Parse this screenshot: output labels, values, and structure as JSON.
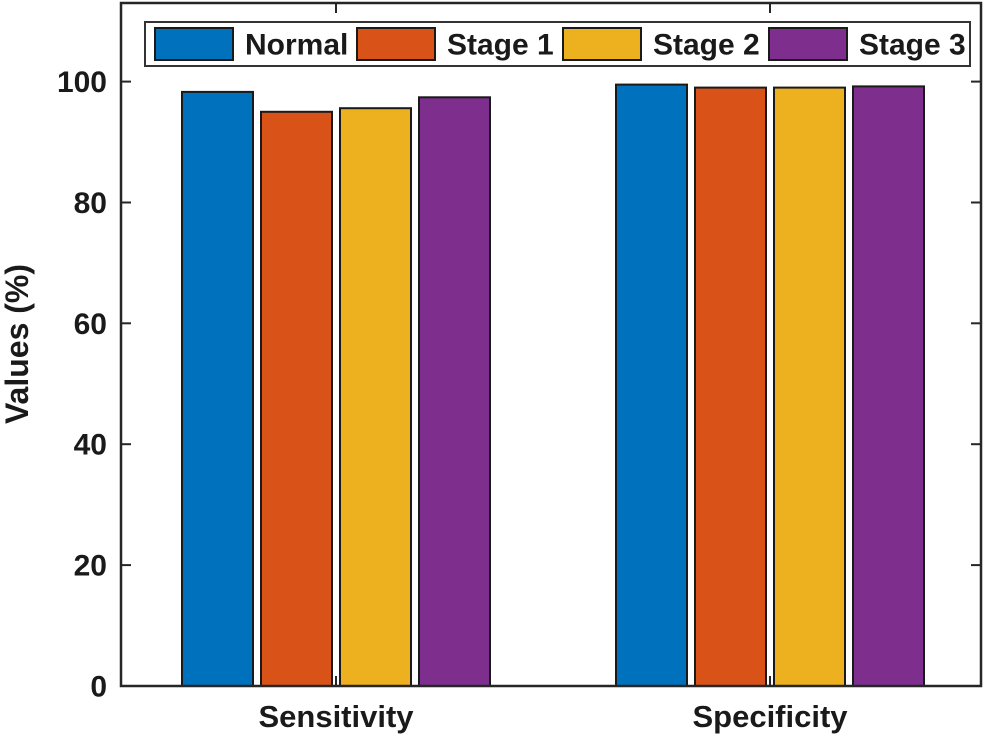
{
  "figure": {
    "background": "#ffffff",
    "axis_color": "#262626",
    "bar_edge_color": "#1a1a1a",
    "text_color": "#1a1a1a",
    "legend_border_color": "#333333"
  },
  "chart_data": {
    "type": "bar",
    "title": "",
    "xlabel": "",
    "ylabel": "Values (%)",
    "categories": [
      "Sensitivity",
      "Specificity"
    ],
    "series": [
      {
        "name": "Normal",
        "color": "#0072BD",
        "values": [
          98.3,
          99.5
        ]
      },
      {
        "name": "Stage 1",
        "color": "#D95319",
        "values": [
          95.0,
          99.0
        ]
      },
      {
        "name": "Stage 2",
        "color": "#EDB120",
        "values": [
          95.6,
          99.0
        ]
      },
      {
        "name": "Stage 3",
        "color": "#7E2F8E",
        "values": [
          97.4,
          99.2
        ]
      }
    ],
    "ylim": [
      0,
      113
    ],
    "yticks": [
      0,
      20,
      40,
      60,
      80,
      100
    ],
    "legend_position": "top-inside",
    "grid": false
  }
}
